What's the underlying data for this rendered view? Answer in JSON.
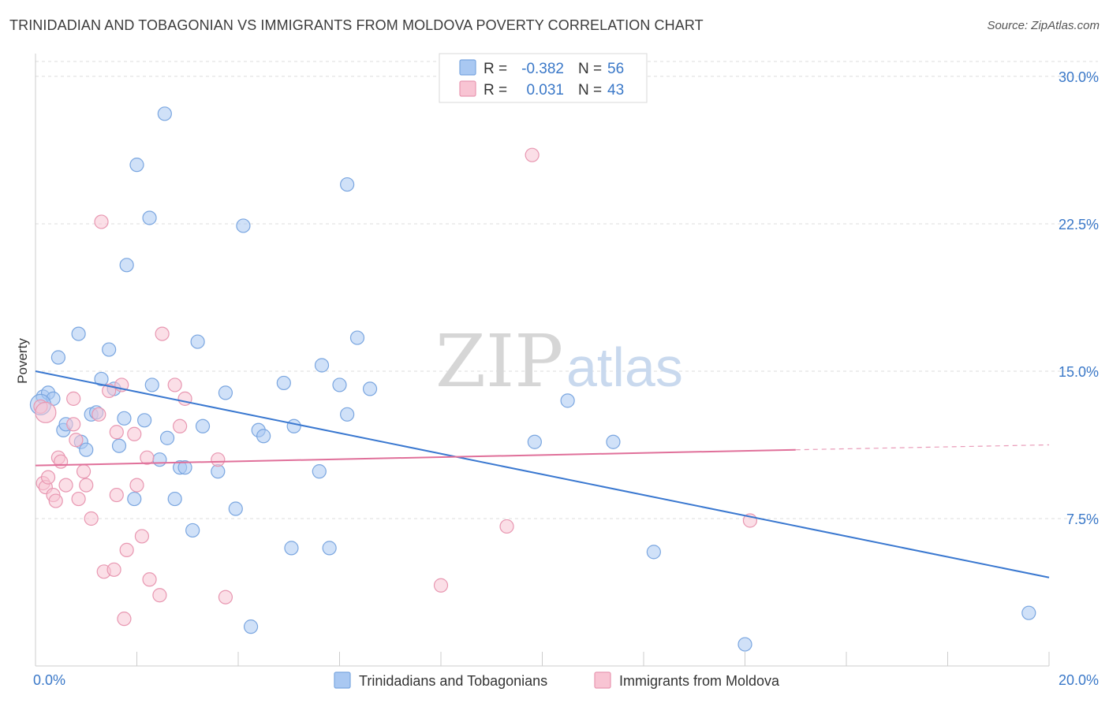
{
  "title": "TRINIDADIAN AND TOBAGONIAN VS IMMIGRANTS FROM MOLDOVA POVERTY CORRELATION CHART",
  "source": "Source: ZipAtlas.com",
  "watermark": {
    "zip": "ZIP",
    "atlas": "atlas"
  },
  "legend_top": {
    "rows": [
      {
        "r_label": "R =",
        "r_value": "-0.382",
        "n_label": "N =",
        "n_value": "56",
        "color": "#a9c8f2",
        "stroke": "#7aa6e0"
      },
      {
        "r_label": "R =",
        "r_value": "0.031",
        "n_label": "N =",
        "n_value": "43",
        "color": "#f8c4d3",
        "stroke": "#e897b1"
      }
    ]
  },
  "legend_bottom": [
    {
      "label": "Trinidadians and Tobagonians",
      "color": "#a9c8f2",
      "stroke": "#7aa6e0"
    },
    {
      "label": "Immigrants from Moldova",
      "color": "#f8c4d3",
      "stroke": "#e897b1"
    }
  ],
  "chart_data": {
    "type": "scatter",
    "ylabel": "Poverty",
    "xlim": [
      0,
      20
    ],
    "ylim": [
      0,
      31
    ],
    "y_ticks": [
      {
        "value": 7.5,
        "label": "7.5%"
      },
      {
        "value": 15,
        "label": "15.0%"
      },
      {
        "value": 22.5,
        "label": "22.5%"
      },
      {
        "value": 30,
        "label": "30.0%"
      }
    ],
    "x_tick_labels": [
      {
        "value": 0,
        "label": "0.0%"
      },
      {
        "value": 20,
        "label": "20.0%"
      }
    ],
    "x_minor_ticks": [
      0,
      2,
      4,
      6,
      8,
      10,
      12,
      14,
      16,
      18,
      20
    ],
    "grid": true,
    "series": [
      {
        "name": "Trinidadians and Tobagonians",
        "color": "#a9c8f2",
        "stroke": "#7aa6e0",
        "line_color": "#3a78d0",
        "trend": {
          "x0": 0.0,
          "y0": 15.0,
          "x1": 20.0,
          "y1": 4.5
        },
        "points": [
          [
            0.15,
            13.7
          ],
          [
            0.25,
            13.9
          ],
          [
            0.35,
            13.6
          ],
          [
            0.45,
            15.7
          ],
          [
            0.55,
            12.0
          ],
          [
            0.6,
            12.3
          ],
          [
            0.85,
            16.9
          ],
          [
            0.9,
            11.4
          ],
          [
            1.0,
            11.0
          ],
          [
            1.1,
            12.8
          ],
          [
            1.2,
            12.9
          ],
          [
            1.3,
            14.6
          ],
          [
            1.45,
            16.1
          ],
          [
            1.55,
            14.1
          ],
          [
            1.65,
            11.2
          ],
          [
            1.75,
            12.6
          ],
          [
            1.8,
            20.4
          ],
          [
            1.95,
            8.5
          ],
          [
            2.0,
            25.5
          ],
          [
            2.15,
            12.5
          ],
          [
            2.25,
            22.8
          ],
          [
            2.3,
            14.3
          ],
          [
            2.45,
            10.5
          ],
          [
            2.55,
            28.1
          ],
          [
            2.6,
            11.6
          ],
          [
            2.75,
            8.5
          ],
          [
            2.85,
            10.1
          ],
          [
            2.95,
            10.1
          ],
          [
            3.1,
            6.9
          ],
          [
            3.2,
            16.5
          ],
          [
            3.3,
            12.2
          ],
          [
            3.6,
            9.9
          ],
          [
            3.75,
            13.9
          ],
          [
            3.95,
            8.0
          ],
          [
            4.1,
            22.4
          ],
          [
            4.25,
            2.0
          ],
          [
            4.4,
            12.0
          ],
          [
            4.5,
            11.7
          ],
          [
            4.9,
            14.4
          ],
          [
            5.1,
            12.2
          ],
          [
            5.05,
            6.0
          ],
          [
            5.6,
            9.9
          ],
          [
            5.65,
            15.3
          ],
          [
            5.8,
            6.0
          ],
          [
            6.0,
            14.3
          ],
          [
            6.15,
            12.8
          ],
          [
            6.15,
            24.5
          ],
          [
            6.35,
            16.7
          ],
          [
            6.6,
            14.1
          ],
          [
            9.85,
            11.4
          ],
          [
            10.5,
            13.5
          ],
          [
            11.4,
            11.4
          ],
          [
            12.2,
            5.8
          ],
          [
            14.0,
            1.1
          ],
          [
            19.6,
            2.7
          ],
          [
            0.1,
            13.3
          ]
        ]
      },
      {
        "name": "Immigrants from Moldova",
        "color": "#f8c4d3",
        "stroke": "#e897b1",
        "line_color": "#e0709a",
        "trend": {
          "x0": 0.0,
          "y0": 10.2,
          "x1": 15.0,
          "y1": 11.0
        },
        "trend_dashed": {
          "x0": 15.0,
          "y0": 11.0,
          "x1": 20.0,
          "y1": 11.25
        },
        "points": [
          [
            0.1,
            13.2
          ],
          [
            0.15,
            9.3
          ],
          [
            0.2,
            9.1
          ],
          [
            0.25,
            9.6
          ],
          [
            0.35,
            8.7
          ],
          [
            0.4,
            8.4
          ],
          [
            0.45,
            10.6
          ],
          [
            0.5,
            10.4
          ],
          [
            0.6,
            9.2
          ],
          [
            0.75,
            12.3
          ],
          [
            0.75,
            13.6
          ],
          [
            0.8,
            11.5
          ],
          [
            0.85,
            8.5
          ],
          [
            0.95,
            9.9
          ],
          [
            1.0,
            9.2
          ],
          [
            1.1,
            7.5
          ],
          [
            1.25,
            12.8
          ],
          [
            1.3,
            22.6
          ],
          [
            1.35,
            4.8
          ],
          [
            1.45,
            14.0
          ],
          [
            1.55,
            4.9
          ],
          [
            1.6,
            8.7
          ],
          [
            1.6,
            11.9
          ],
          [
            1.7,
            14.3
          ],
          [
            1.75,
            2.4
          ],
          [
            1.8,
            5.9
          ],
          [
            1.95,
            11.8
          ],
          [
            2.0,
            9.2
          ],
          [
            2.1,
            6.6
          ],
          [
            2.2,
            10.6
          ],
          [
            2.25,
            4.4
          ],
          [
            2.45,
            3.6
          ],
          [
            2.5,
            16.9
          ],
          [
            2.75,
            14.3
          ],
          [
            2.85,
            12.2
          ],
          [
            2.95,
            13.6
          ],
          [
            3.6,
            10.5
          ],
          [
            3.75,
            3.5
          ],
          [
            8.0,
            4.1
          ],
          [
            9.3,
            7.1
          ],
          [
            9.8,
            26.0
          ],
          [
            14.1,
            7.4
          ],
          [
            0.2,
            12.9
          ]
        ]
      }
    ]
  }
}
